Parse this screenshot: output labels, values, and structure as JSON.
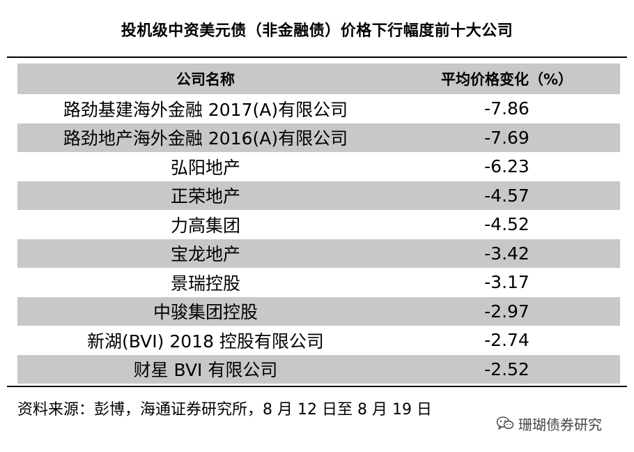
{
  "title": "投机级中资美元债（非金融债）价格下行幅度前十大公司",
  "table": {
    "headers": [
      "公司名称",
      "平均价格变化（%）"
    ],
    "rows": [
      {
        "name": "路劲基建海外金融 2017(A)有限公司",
        "value": "-7.86"
      },
      {
        "name": "路劲地产海外金融 2016(A)有限公司",
        "value": "-7.69"
      },
      {
        "name": "弘阳地产",
        "value": "-6.23"
      },
      {
        "name": "正荣地产",
        "value": "-4.57"
      },
      {
        "name": "力高集团",
        "value": "-4.52"
      },
      {
        "name": "宝龙地产",
        "value": "-3.42"
      },
      {
        "name": "景瑞控股",
        "value": "-3.17"
      },
      {
        "name": "中骏集团控股",
        "value": "-2.97"
      },
      {
        "name": "新湖(BVI) 2018 控股有限公司",
        "value": "-2.74"
      },
      {
        "name": "财星 BVI 有限公司",
        "value": "-2.52"
      }
    ]
  },
  "source": "资料来源：彭博，海通证券研究所，8 月 12 日至 8 月 19 日",
  "watermark": {
    "text": "珊瑚债券研究",
    "icon": "wechat-icon"
  },
  "colors": {
    "shade": "#c8c8c8",
    "rule": "#000000"
  }
}
